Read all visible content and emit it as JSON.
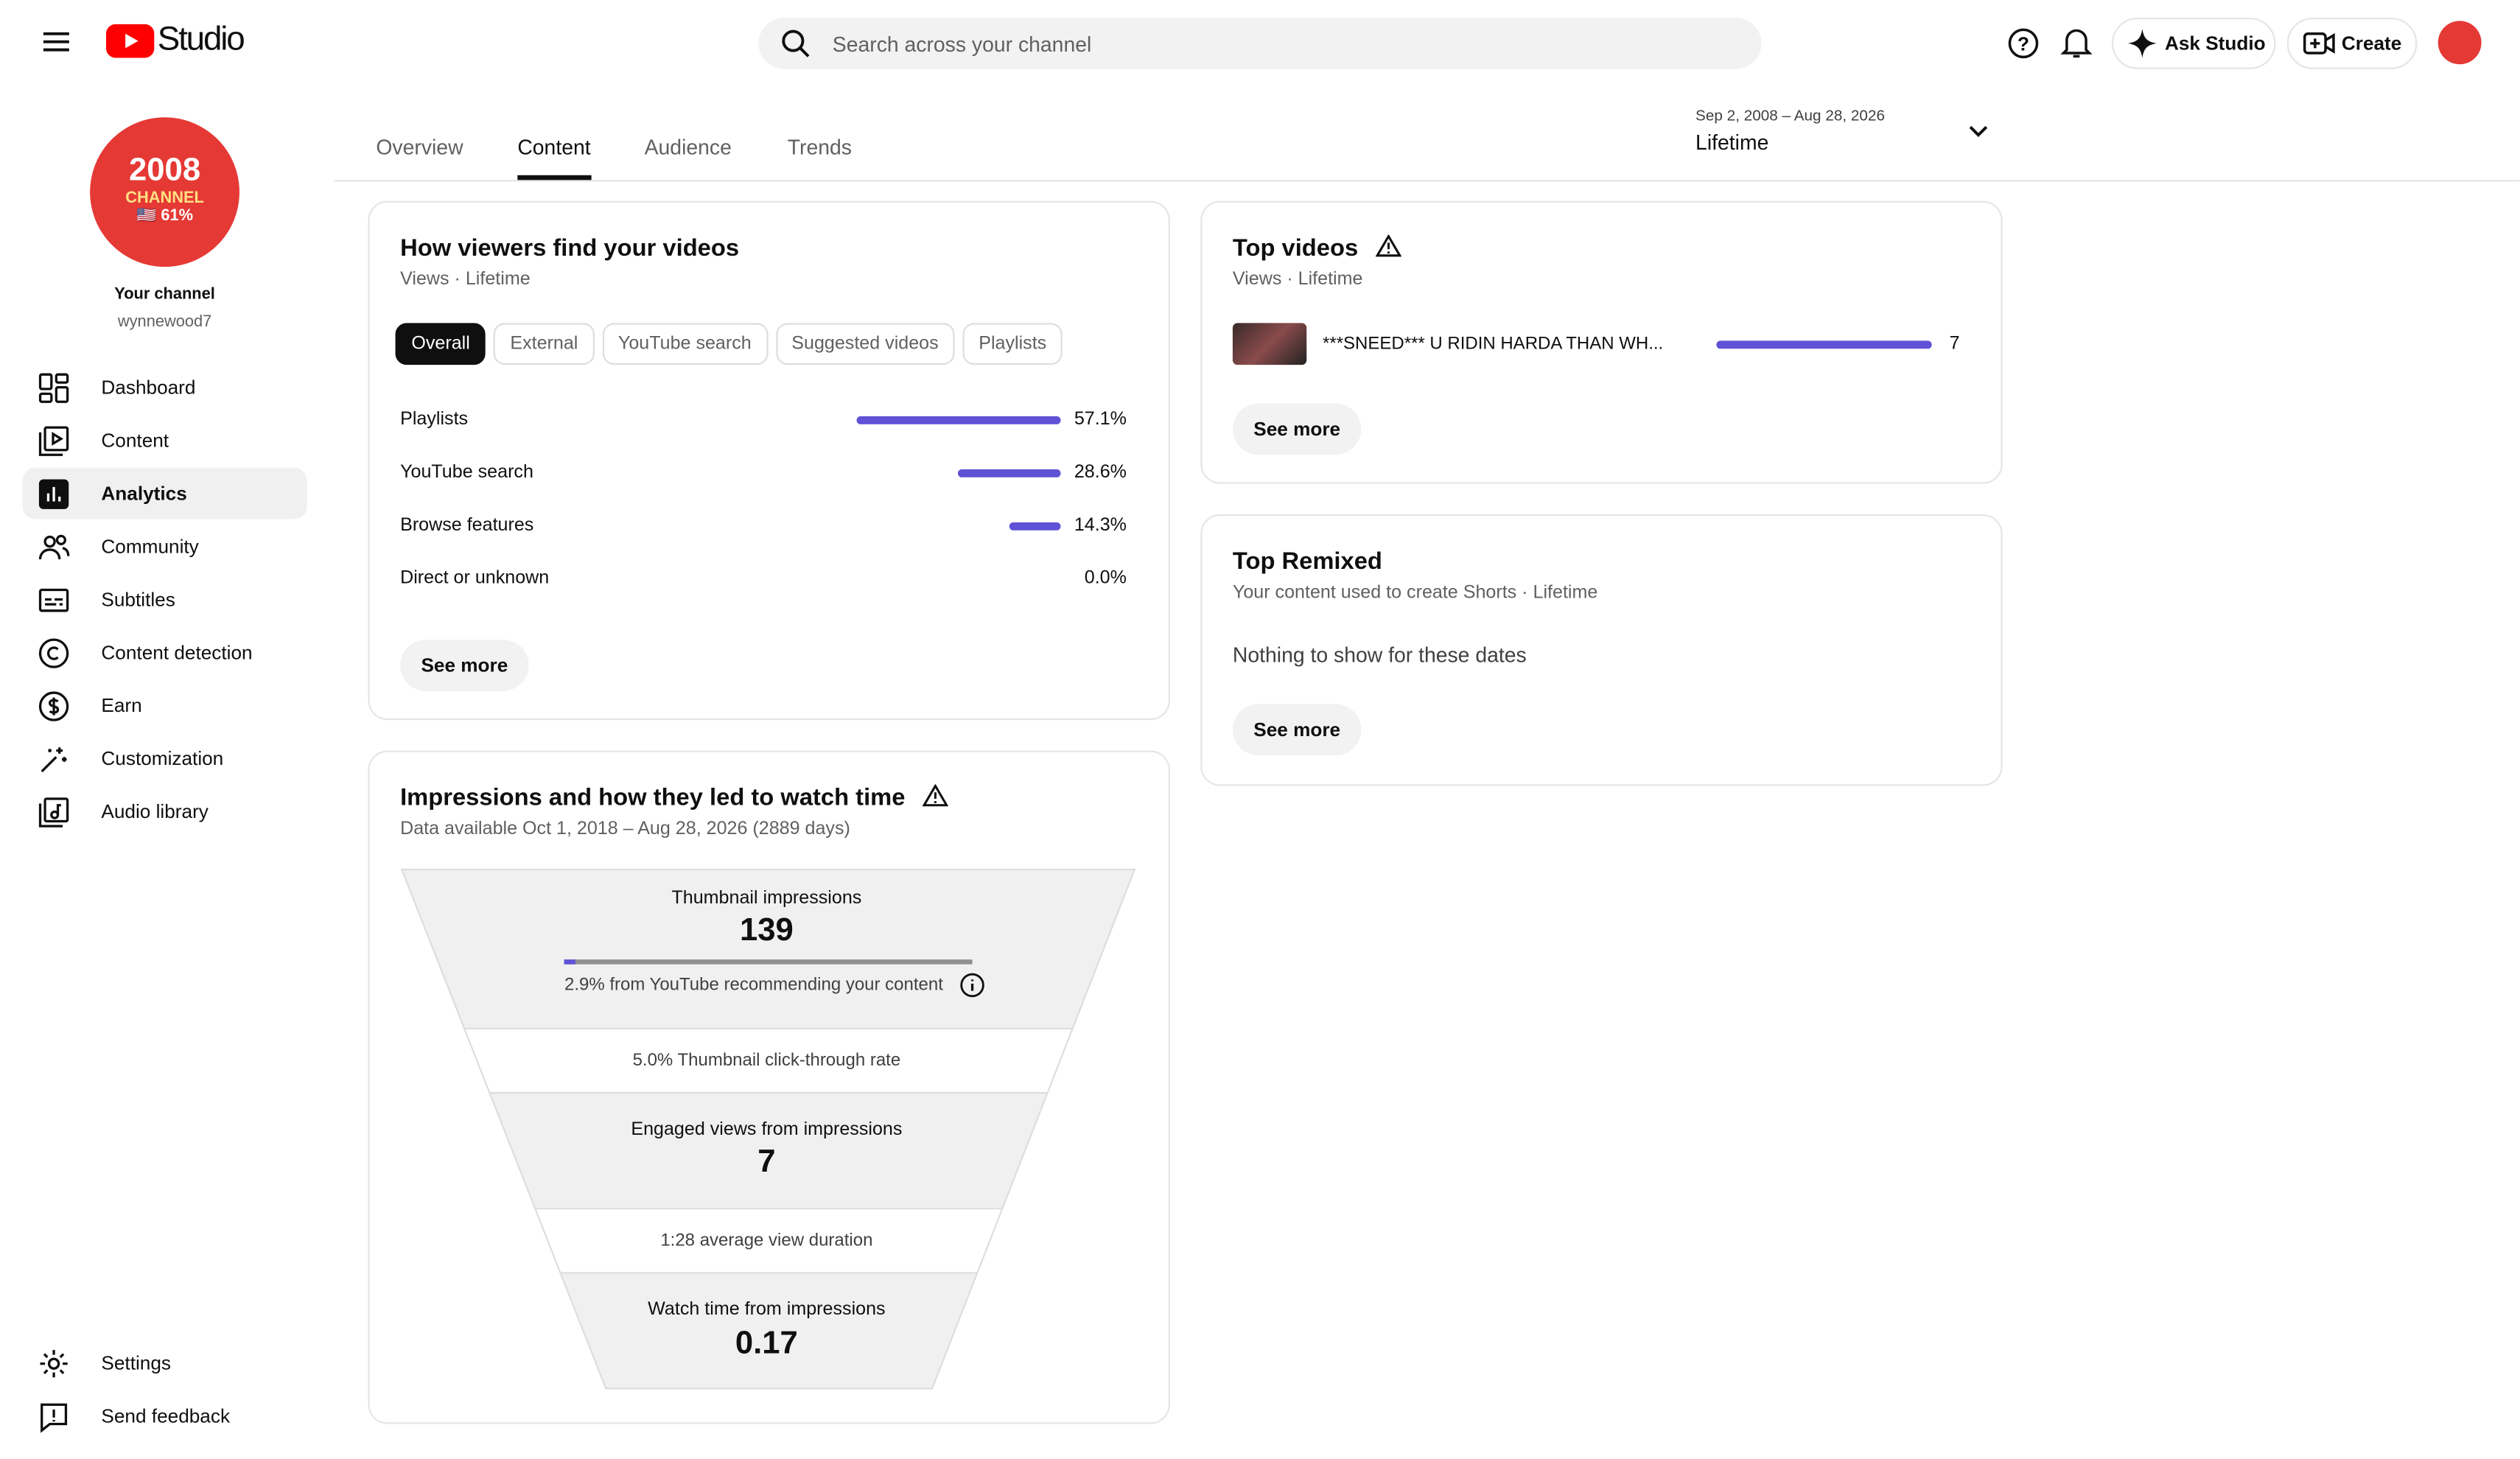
{
  "header": {
    "logo": "Studio",
    "search_placeholder": "Search across your channel",
    "ask_studio": "Ask Studio",
    "create": "Create"
  },
  "sidebar": {
    "avatar_lines": [
      "2008",
      "CHANNEL",
      "🇺🇸 61%"
    ],
    "channel_label": "Your channel",
    "channel_handle": "wynnewood7",
    "nav": [
      "Dashboard",
      "Content",
      "Analytics",
      "Community",
      "Subtitles",
      "Content detection",
      "Earn",
      "Customization",
      "Audio library"
    ],
    "bottom_nav": [
      "Settings",
      "Send feedback"
    ]
  },
  "tabs": [
    "Overview",
    "Content",
    "Audience",
    "Trends"
  ],
  "date_range": {
    "dates": "Sep 2, 2008 – Aug 28, 2026",
    "period": "Lifetime"
  },
  "traffic_card": {
    "title": "How viewers find your videos",
    "subtitle": "Views · Lifetime",
    "filters": [
      "Overall",
      "External",
      "YouTube search",
      "Suggested videos",
      "Playlists"
    ],
    "rows": [
      {
        "name": "Playlists",
        "value": 57.1,
        "value_label": "57.1%"
      },
      {
        "name": "YouTube search",
        "value": 28.6,
        "value_label": "28.6%"
      },
      {
        "name": "Browse features",
        "value": 14.3,
        "value_label": "14.3%"
      },
      {
        "name": "Direct or unknown",
        "value": 0.0,
        "value_label": "0.0%"
      }
    ],
    "see_more": "See more"
  },
  "funnel_card": {
    "title": "Impressions and how they led to watch time",
    "subtitle": "Data available Oct 1, 2018 – Aug 28, 2026 (2889 days)",
    "impressions_label": "Thumbnail impressions",
    "impressions": 139,
    "recommend_share": 2.9,
    "recommend_label": "2.9% from YouTube recommending your content",
    "ctr_label": "5.0% Thumbnail click-through rate",
    "views_label": "Engaged views from impressions",
    "views": 7,
    "duration_label": "1:28 average view duration",
    "watch_label": "Watch time from impressions",
    "watch_time": 0.17
  },
  "top_videos": {
    "title": "Top videos",
    "subtitle": "Views · Lifetime",
    "videos": [
      {
        "title": "***SNEED*** U RIDIN HARDA THAN WH...",
        "views": 7
      }
    ],
    "see_more": "See more"
  },
  "top_remixed": {
    "title": "Top Remixed",
    "subtitle": "Your content used to create Shorts · Lifetime",
    "empty": "Nothing to show for these dates",
    "see_more": "See more"
  }
}
